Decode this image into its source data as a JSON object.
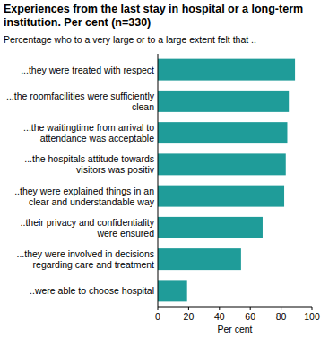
{
  "chart_data": {
    "type": "bar",
    "orientation": "horizontal",
    "title": "Experiences from the last stay in hospital or a long-term institution. Per cent (n=330)",
    "subtitle": "Percentage who to a very large or to a large extent felt that ..",
    "categories": [
      "...they were treated with respect",
      "...the roomfacilities were sufficiently clean",
      "...the waitingtime from arrival to attendance was acceptable",
      "...the hospitals attitude towards visitors was positiv",
      "..they were explained things in an clear and understandable way",
      "..their privacy and confidentiality were ensured",
      "...they were involved in decisions regarding care and treatment",
      "..were able to choose hospital"
    ],
    "values": [
      89,
      85,
      84,
      83,
      82,
      68,
      54,
      19
    ],
    "color": "#1f9c99",
    "x_label": "Per cent",
    "xlim": [
      0,
      100
    ],
    "xticks": [
      0,
      20,
      40,
      60,
      80,
      100
    ],
    "grid": false
  }
}
